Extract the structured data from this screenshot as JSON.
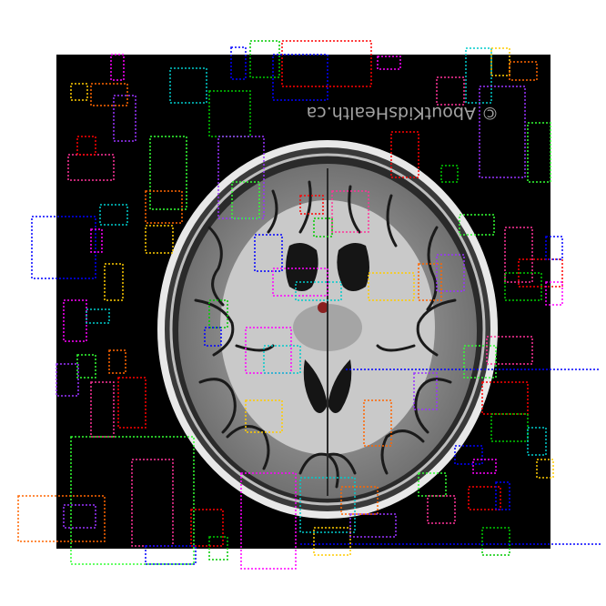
{
  "image": {
    "subject": "axial brain MRI",
    "watermark": "© AboutKidsHealth.ca",
    "watermark_mirrored": true,
    "background_color": "#000000",
    "page_color": "#ffffff"
  },
  "overlay": {
    "style": "dotted",
    "palette": [
      "#ff0000",
      "#00cc00",
      "#0000ff",
      "#ff00ff",
      "#00cccc",
      "#ffcc00",
      "#ff6600",
      "#9933ff",
      "#33ff33",
      "#ff3399"
    ]
  }
}
